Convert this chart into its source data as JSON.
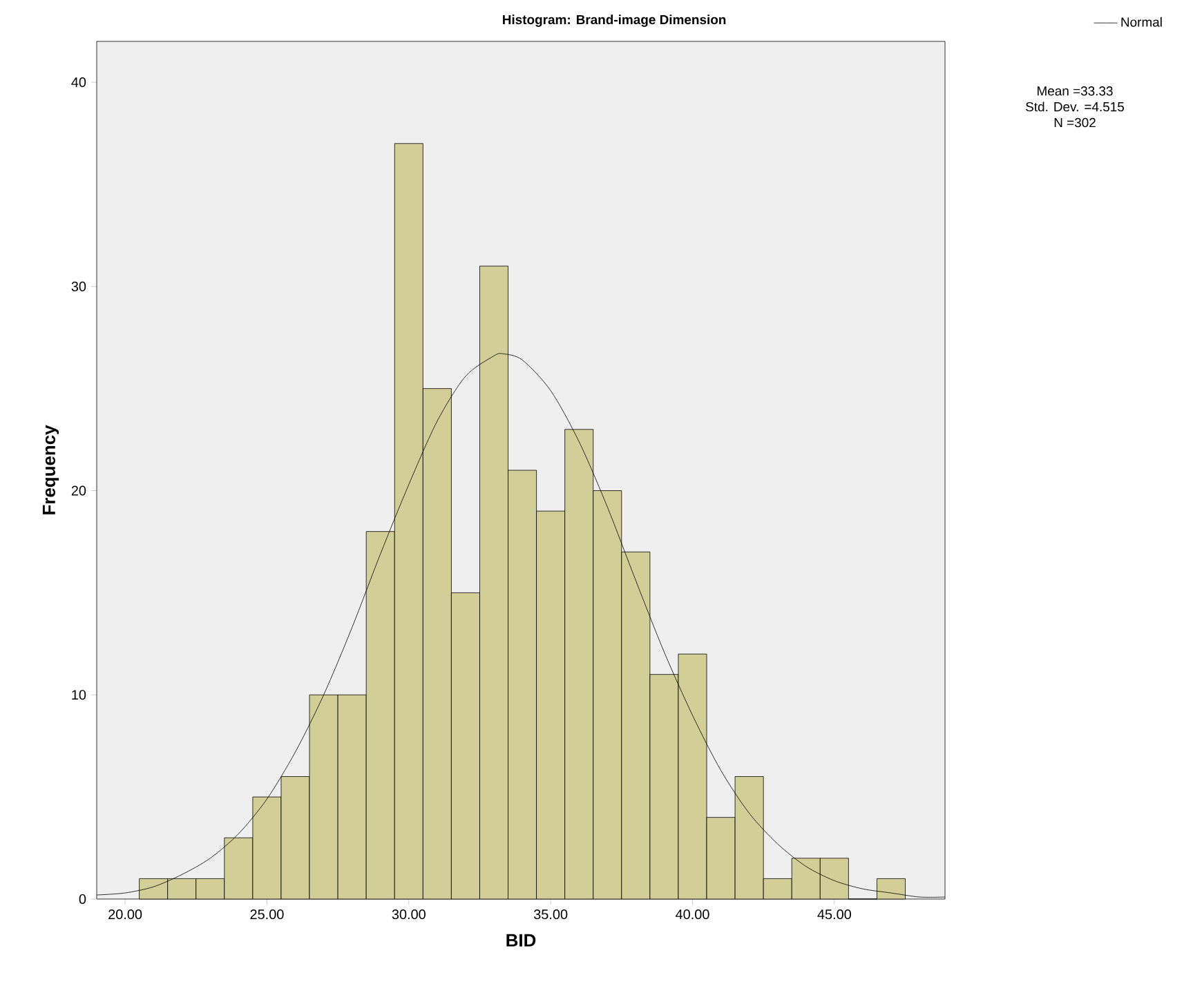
{
  "chart_data": {
    "type": "histogram",
    "title": "Histogram: Brand-image Dimension",
    "xlabel": "BID",
    "ylabel": "Frequency",
    "bins": [
      20.5,
      21.5,
      22.5,
      23.5,
      24.5,
      25.5,
      26.5,
      27.5,
      28.5,
      29.5,
      30.5,
      31.5,
      32.5,
      33.5,
      34.5,
      35.5,
      36.5,
      37.5,
      38.5,
      39.5,
      40.5,
      41.5,
      42.5,
      43.5,
      44.5,
      45.5,
      46.5,
      47.5
    ],
    "values": [
      1,
      1,
      1,
      3,
      5,
      6,
      10,
      10,
      18,
      37,
      25,
      15,
      31,
      21,
      19,
      23,
      20,
      17,
      11,
      12,
      4,
      6,
      1,
      2,
      2,
      0,
      1
    ],
    "color": "#d3ce98",
    "series": [
      {
        "type": "line",
        "name": "Normal",
        "color": "#000000",
        "x": [
          19,
          20,
          21,
          22,
          23,
          24,
          25,
          26,
          27,
          28,
          29,
          30,
          31,
          32,
          33,
          33.33,
          34,
          35,
          36,
          37,
          38,
          39,
          40,
          41,
          42,
          43,
          44,
          45,
          46,
          47,
          48,
          48.9
        ],
        "values": [
          0.2,
          0.3,
          0.6,
          1.2,
          2.0,
          3.2,
          4.9,
          7.2,
          10.0,
          13.3,
          16.9,
          20.3,
          23.4,
          25.6,
          26.6,
          26.7,
          26.4,
          24.9,
          22.4,
          19.2,
          15.6,
          12.1,
          9.0,
          6.3,
          4.2,
          2.7,
          1.6,
          0.9,
          0.5,
          0.3,
          0.1,
          0.1
        ]
      }
    ],
    "annotations": [
      "Mean =33.33",
      "Std. Dev. =4.515",
      "N =302"
    ],
    "xlim": [
      19,
      48.9
    ],
    "ylim": [
      0,
      42
    ],
    "xticks": [
      {
        "value": 20,
        "label": "20.00"
      },
      {
        "value": 25,
        "label": "25.00"
      },
      {
        "value": 30,
        "label": "30.00"
      },
      {
        "value": 35,
        "label": "35.00"
      },
      {
        "value": 40,
        "label": "40.00"
      },
      {
        "value": 45,
        "label": "45.00"
      }
    ],
    "yticks": [
      0,
      10,
      20,
      30,
      40
    ],
    "grid": false,
    "legend": "top right",
    "marker": "none",
    "line_style": "solid"
  }
}
